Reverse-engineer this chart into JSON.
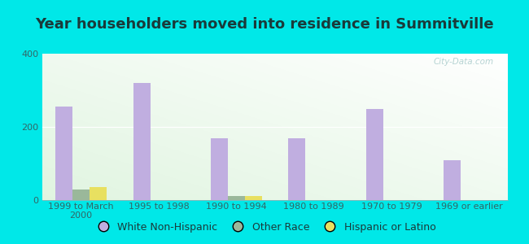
{
  "title": "Year householders moved into residence in Summitville",
  "categories": [
    "1999 to March\n2000",
    "1995 to 1998",
    "1990 to 1994",
    "1980 to 1989",
    "1970 to 1979",
    "1969 or earlier"
  ],
  "white_non_hispanic": [
    255,
    320,
    168,
    168,
    248,
    108
  ],
  "other_race": [
    28,
    0,
    12,
    0,
    0,
    0
  ],
  "hispanic_or_latino": [
    35,
    0,
    12,
    0,
    0,
    0
  ],
  "bar_color_white": "#c0aee0",
  "bar_color_other": "#9ab89a",
  "bar_color_hispanic": "#e8e060",
  "bg_outer": "#00e8e8",
  "ylim": [
    0,
    400
  ],
  "yticks": [
    0,
    200,
    400
  ],
  "bar_width": 0.22,
  "title_fontsize": 13,
  "tick_fontsize": 8,
  "legend_fontsize": 9,
  "watermark": "City-Data.com"
}
